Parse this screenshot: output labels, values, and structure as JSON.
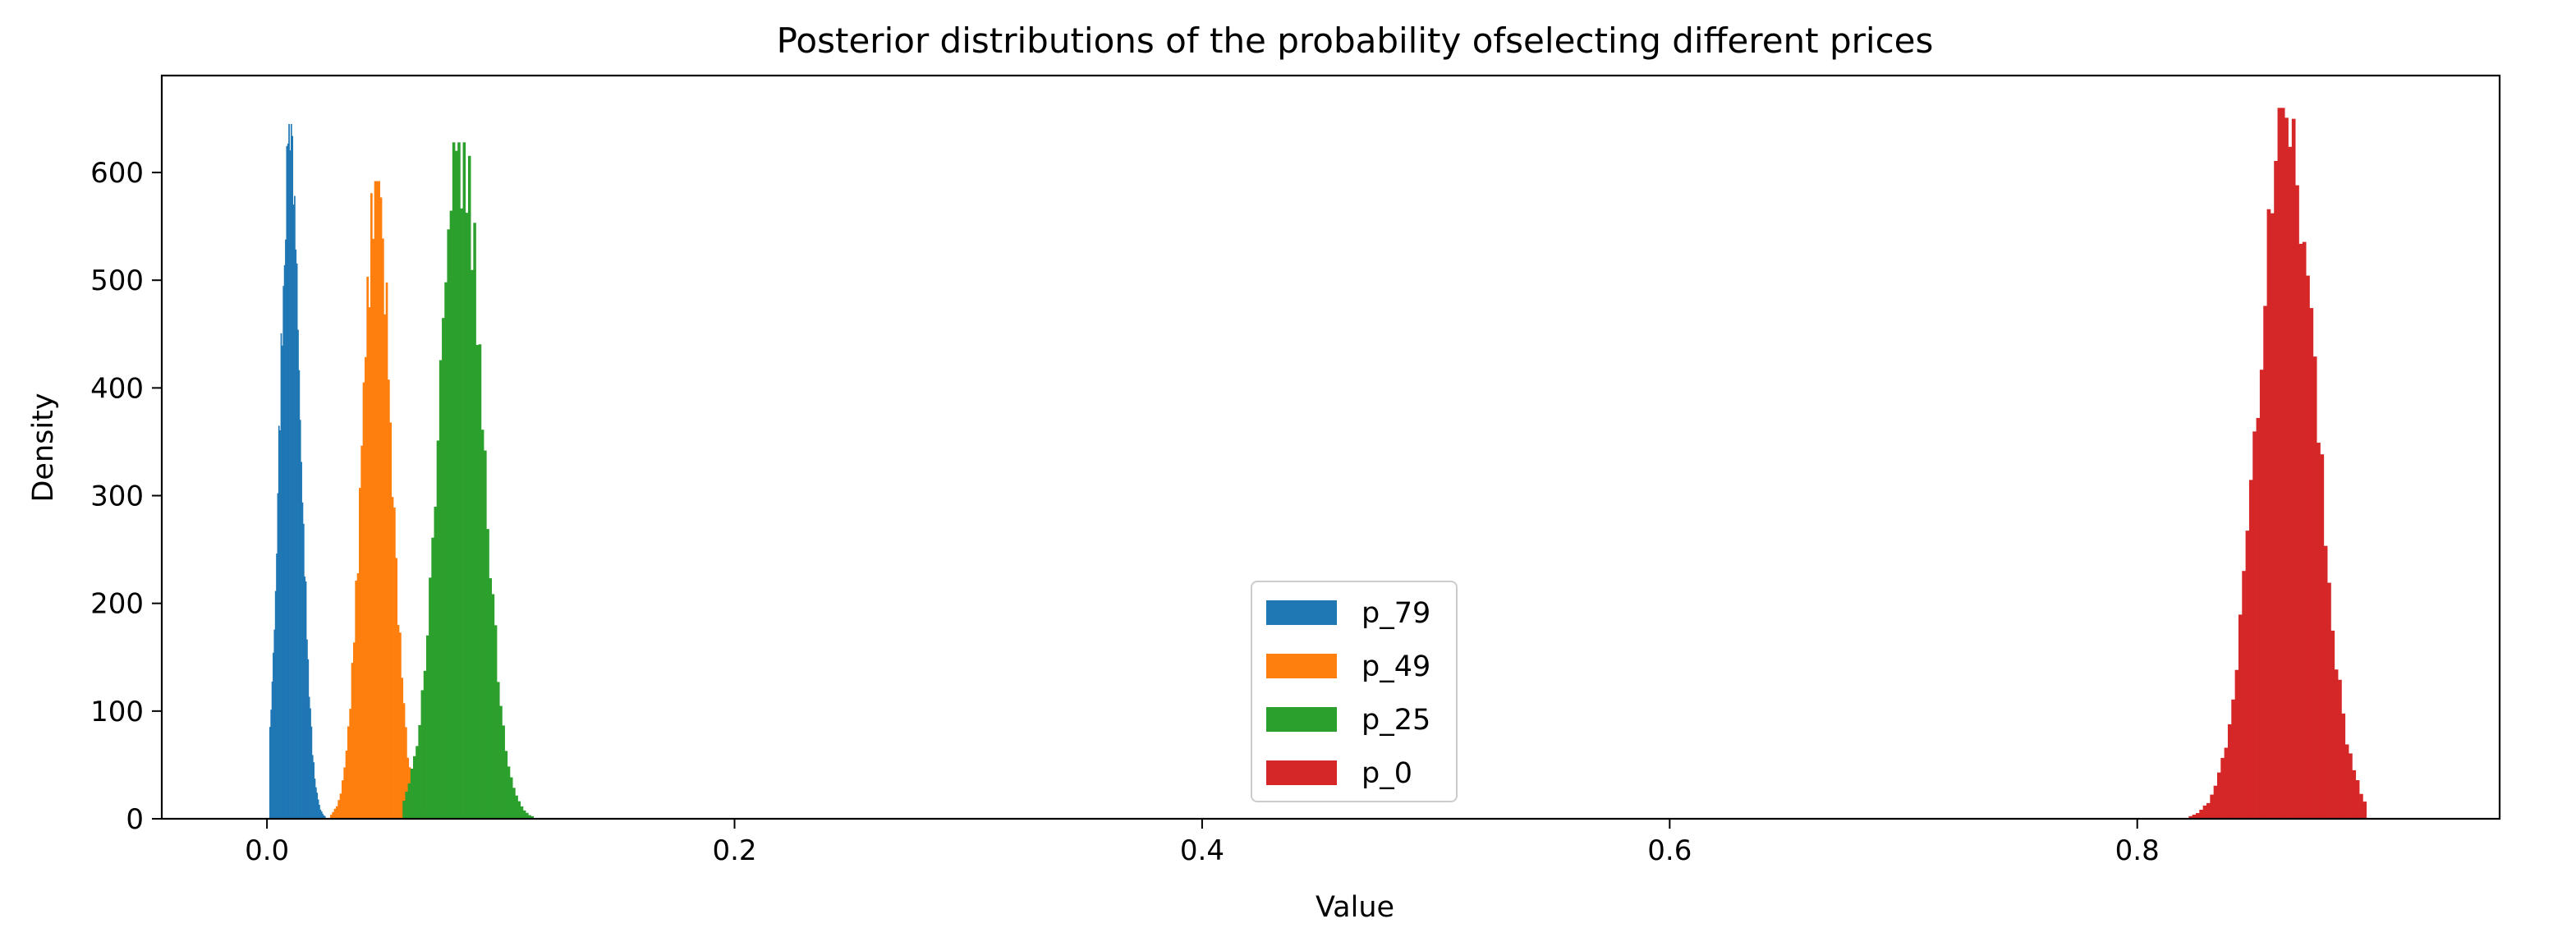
{
  "chart_data": {
    "type": "histogram",
    "title": "Posterior distributions of the probability ofselecting different prices",
    "xlabel": "Value",
    "ylabel": "Density",
    "xlim": [
      -0.045,
      0.955
    ],
    "ylim": [
      0,
      690
    ],
    "xticks": [
      0.0,
      0.2,
      0.4,
      0.6,
      0.8
    ],
    "xtick_labels": [
      "0.0",
      "0.2",
      "0.4",
      "0.6",
      "0.8"
    ],
    "yticks": [
      0,
      100,
      200,
      300,
      400,
      500,
      600
    ],
    "ytick_labels": [
      "0",
      "100",
      "200",
      "300",
      "400",
      "500",
      "600"
    ],
    "grid": false,
    "legend_position": "lower-center",
    "series": [
      {
        "name": "p_79",
        "color": "#1f77b4",
        "mean": 0.01,
        "peak": 645,
        "xmin": 0.001,
        "xmax": 0.025
      },
      {
        "name": "p_49",
        "color": "#ff7f0e",
        "mean": 0.047,
        "peak": 592,
        "xmin": 0.027,
        "xmax": 0.068
      },
      {
        "name": "p_25",
        "color": "#2ca02c",
        "mean": 0.083,
        "peak": 628,
        "xmin": 0.058,
        "xmax": 0.114
      },
      {
        "name": "p_0",
        "color": "#d62728",
        "mean": 0.864,
        "peak": 660,
        "xmin": 0.822,
        "xmax": 0.898
      }
    ]
  }
}
